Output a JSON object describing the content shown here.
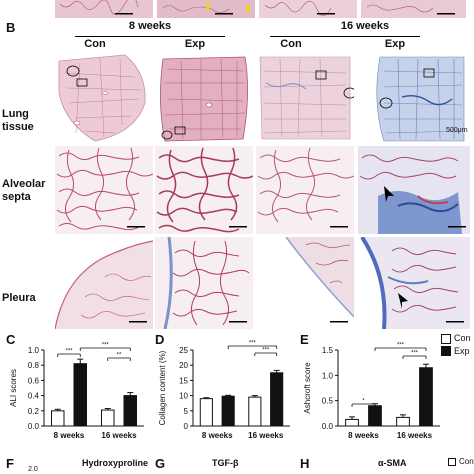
{
  "panel_b": {
    "label": "B",
    "group_8": "8 weeks",
    "group_16": "16 weeks",
    "col_labels": [
      "Con",
      "Exp",
      "Con",
      "Exp"
    ],
    "row_labels": [
      "Lung\ntissue",
      "Alveolar\nsepta",
      "Pleura"
    ],
    "scale_text": "500μm"
  },
  "panel_c_label": "C",
  "panel_d_label": "D",
  "panel_e_label": "E",
  "panel_f": {
    "label": "F",
    "title": "Hydroxyproline",
    "tick": "2.0"
  },
  "panel_g": {
    "label": "G",
    "title": "TGF-β"
  },
  "panel_h": {
    "label": "H",
    "title": "α-SMA"
  },
  "legend": {
    "con": "Con",
    "exp": "Exp"
  },
  "colors": {
    "con": "#ffffff",
    "exp": "#111111",
    "he_stain": "#c4566e",
    "masson_blue": "#5b7fc4"
  },
  "chart_data": [
    {
      "type": "bar",
      "categories": [
        "8 weeks",
        "16 weeks"
      ],
      "series": [
        {
          "name": "Con",
          "values": [
            0.2,
            0.21
          ],
          "errors": [
            0.02,
            0.02
          ]
        },
        {
          "name": "Exp",
          "values": [
            0.82,
            0.4
          ],
          "errors": [
            0.06,
            0.04
          ]
        }
      ],
      "ylabel": "ALI scores",
      "ylim": [
        0,
        1.0
      ],
      "yticks": [
        "0.0",
        "0.2",
        "0.4",
        "0.6",
        "0.8",
        "1.0"
      ],
      "significance": [
        "***",
        "***",
        "**"
      ]
    },
    {
      "type": "bar",
      "categories": [
        "8 weeks",
        "16 weeks"
      ],
      "series": [
        {
          "name": "Con",
          "values": [
            9.0,
            9.5
          ],
          "errors": [
            0.3,
            0.5
          ]
        },
        {
          "name": "Exp",
          "values": [
            9.8,
            17.5
          ],
          "errors": [
            0.3,
            0.8
          ]
        }
      ],
      "ylabel": "Collagen content (%)",
      "ylim": [
        0,
        25
      ],
      "yticks": [
        "0",
        "5",
        "10",
        "15",
        "20",
        "25"
      ],
      "significance": [
        "***",
        "***"
      ]
    },
    {
      "type": "bar",
      "categories": [
        "8 weeks",
        "16 weeks"
      ],
      "series": [
        {
          "name": "Con",
          "values": [
            0.13,
            0.17
          ],
          "errors": [
            0.05,
            0.05
          ]
        },
        {
          "name": "Exp",
          "values": [
            0.4,
            1.15
          ],
          "errors": [
            0.04,
            0.07
          ]
        }
      ],
      "ylabel": "Ashcroft score",
      "ylim": [
        0,
        1.5
      ],
      "yticks": [
        "0.0",
        "0.5",
        "1.0",
        "1.5"
      ],
      "significance": [
        "*",
        "***",
        "***"
      ]
    }
  ]
}
